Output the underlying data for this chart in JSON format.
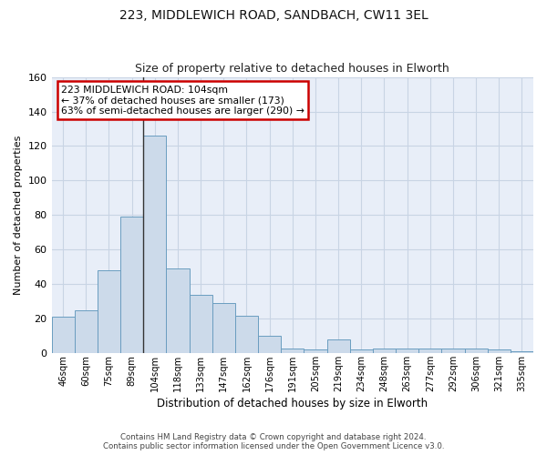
{
  "title1": "223, MIDDLEWICH ROAD, SANDBACH, CW11 3EL",
  "title2": "Size of property relative to detached houses in Elworth",
  "xlabel": "Distribution of detached houses by size in Elworth",
  "ylabel": "Number of detached properties",
  "categories": [
    "46sqm",
    "60sqm",
    "75sqm",
    "89sqm",
    "104sqm",
    "118sqm",
    "133sqm",
    "147sqm",
    "162sqm",
    "176sqm",
    "191sqm",
    "205sqm",
    "219sqm",
    "234sqm",
    "248sqm",
    "263sqm",
    "277sqm",
    "292sqm",
    "306sqm",
    "321sqm",
    "335sqm"
  ],
  "values": [
    21,
    25,
    48,
    79,
    126,
    49,
    34,
    29,
    22,
    10,
    3,
    2,
    8,
    2,
    3,
    3,
    3,
    3,
    3,
    2,
    1
  ],
  "bar_color": "#ccdaea",
  "bar_edge_color": "#6a9dc0",
  "highlight_index": 4,
  "highlight_line_color": "#333333",
  "annotation_text": "223 MIDDLEWICH ROAD: 104sqm\n← 37% of detached houses are smaller (173)\n63% of semi-detached houses are larger (290) →",
  "annotation_box_color": "#ffffff",
  "annotation_box_edge_color": "#cc0000",
  "ylim": [
    0,
    160
  ],
  "yticks": [
    0,
    20,
    40,
    60,
    80,
    100,
    120,
    140,
    160
  ],
  "grid_color": "#c8d4e4",
  "background_color": "#e8eef8",
  "footer1": "Contains HM Land Registry data © Crown copyright and database right 2024.",
  "footer2": "Contains public sector information licensed under the Open Government Licence v3.0."
}
